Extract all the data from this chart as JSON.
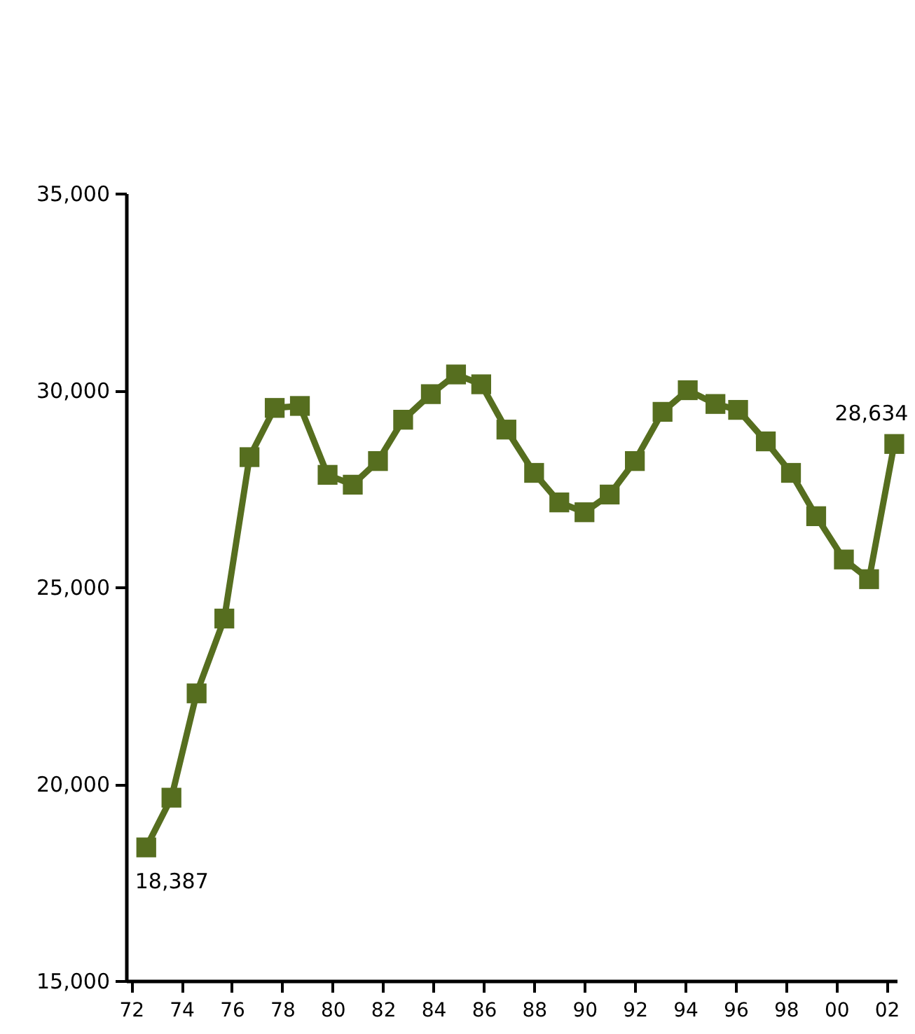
{
  "chart_data": {
    "type": "line",
    "x": [
      1972.6,
      1973.6,
      1974.6,
      1975.7,
      1976.7,
      1977.7,
      1978.7,
      1979.8,
      1980.8,
      1981.8,
      1982.8,
      1983.9,
      1984.9,
      1985.9,
      1986.9,
      1988.0,
      1989.0,
      1990.0,
      1991.0,
      1992.0,
      1993.1,
      1994.1,
      1995.2,
      1996.1,
      1997.2,
      1998.2,
      1999.2,
      2000.3,
      2001.3,
      2002.3
    ],
    "series": [
      {
        "color": "#566e1f",
        "values": [
          18387,
          19650,
          22300,
          24200,
          28300,
          29550,
          29600,
          27850,
          27600,
          28200,
          29250,
          29900,
          30400,
          30150,
          29000,
          27900,
          27150,
          26900,
          27350,
          28200,
          29450,
          30000,
          29650,
          29500,
          28700,
          27900,
          26800,
          25700,
          25200,
          28634
        ],
        "value_labels": [
          "18,387",
          null,
          null,
          null,
          null,
          null,
          null,
          null,
          null,
          null,
          null,
          null,
          null,
          null,
          null,
          null,
          null,
          null,
          null,
          null,
          null,
          null,
          null,
          null,
          null,
          null,
          null,
          null,
          null,
          "28,634"
        ]
      }
    ],
    "marker": "square",
    "line_style": "solid",
    "grid": false,
    "xlim": [
      1971.8,
      2002.4
    ],
    "xticks": [
      {
        "value": 1972,
        "label": "72"
      },
      {
        "value": 1974,
        "label": "74"
      },
      {
        "value": 1976,
        "label": "76"
      },
      {
        "value": 1978,
        "label": "78"
      },
      {
        "value": 1980,
        "label": "80"
      },
      {
        "value": 1982,
        "label": "82"
      },
      {
        "value": 1984,
        "label": "84"
      },
      {
        "value": 1986,
        "label": "86"
      },
      {
        "value": 1988,
        "label": "88"
      },
      {
        "value": 1990,
        "label": "90"
      },
      {
        "value": 1992,
        "label": "92"
      },
      {
        "value": 1994,
        "label": "94"
      },
      {
        "value": 1996,
        "label": "96"
      },
      {
        "value": 1998,
        "label": "98"
      },
      {
        "value": 2000,
        "label": "00"
      },
      {
        "value": 2002,
        "label": "02"
      }
    ],
    "ylim": [
      15000,
      35000
    ],
    "yticks": [
      {
        "value": 15000,
        "label": "15,000"
      },
      {
        "value": 20000,
        "label": "20,000"
      },
      {
        "value": 25000,
        "label": "25,000"
      },
      {
        "value": 30000,
        "label": "30,000"
      },
      {
        "value": 35000,
        "label": "35,000"
      }
    ]
  }
}
